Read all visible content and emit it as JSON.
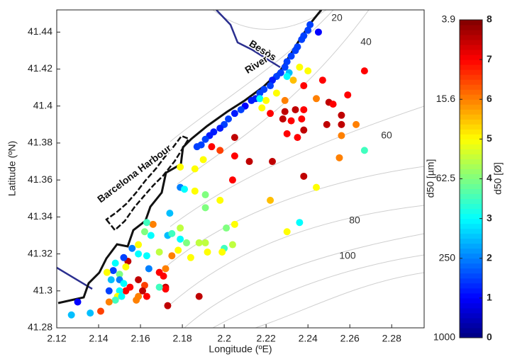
{
  "chart_data": {
    "type": "scatter",
    "colormap": "jet",
    "xlabel": "Longitude (ºE)",
    "ylabel": "Latitude (ºN)",
    "xlim": [
      2.12,
      2.2955
    ],
    "ylim": [
      41.28,
      41.452
    ],
    "xticks": [
      2.12,
      2.14,
      2.16,
      2.18,
      2.2,
      2.22,
      2.24,
      2.26,
      2.28
    ],
    "yticks": [
      41.28,
      41.3,
      41.32,
      41.34,
      41.36,
      41.38,
      41.4,
      41.42,
      41.44
    ],
    "x": [
      2.245,
      2.241,
      2.24,
      2.238,
      2.237,
      2.235,
      2.234,
      2.232,
      2.23,
      2.229,
      2.227,
      2.225,
      2.223,
      2.222,
      2.219,
      2.217,
      2.215,
      2.213,
      2.21,
      2.208,
      2.205,
      2.202,
      2.2,
      2.198,
      2.195,
      2.193,
      2.191,
      2.189,
      2.187,
      2.231,
      2.23,
      2.236,
      2.24,
      2.233,
      2.238,
      2.225,
      2.217,
      2.22,
      2.218,
      2.229,
      2.229,
      2.234,
      2.238,
      2.244,
      2.247,
      2.25,
      2.252,
      2.259,
      2.267,
      2.222,
      2.228,
      2.232,
      2.237,
      2.238,
      2.23,
      2.235,
      2.249,
      2.256,
      2.256,
      2.256,
      2.263,
      2.267,
      2.255,
      2.205,
      2.198,
      2.205,
      2.212,
      2.223,
      2.194,
      2.19,
      2.179,
      2.186,
      2.179,
      2.181,
      2.186,
      2.191,
      2.191,
      2.198,
      2.204,
      2.238,
      2.244,
      2.222,
      2.236,
      2.23,
      2.205,
      2.201,
      2.204,
      2.2,
      2.199,
      2.192,
      2.191,
      2.188,
      2.182,
      2.184,
      2.178,
      2.179,
      2.173,
      2.175,
      2.179,
      2.174,
      2.166,
      2.163,
      2.162,
      2.165,
      2.169,
      2.175,
      2.172,
      2.169,
      2.171,
      2.172,
      2.172,
      2.169,
      2.164,
      2.163,
      2.159,
      2.156,
      2.159,
      2.154,
      2.152,
      2.148,
      2.153,
      2.147,
      2.144,
      2.15,
      2.146,
      2.15,
      2.152,
      2.155,
      2.159,
      2.162,
      2.161,
      2.163,
      2.159,
      2.158,
      2.153,
      2.15,
      2.149,
      2.145,
      2.148,
      2.151,
      2.145,
      2.141,
      2.136,
      2.127,
      2.13,
      2.188,
      2.173
    ],
    "y": [
      41.44,
      41.444,
      41.441,
      41.438,
      41.436,
      41.432,
      41.43,
      41.427,
      41.424,
      41.421,
      41.418,
      41.416,
      41.414,
      41.411,
      41.409,
      41.407,
      41.404,
      41.403,
      41.4,
      41.398,
      41.396,
      41.393,
      41.39,
      41.388,
      41.386,
      41.384,
      41.382,
      41.379,
      41.378,
      41.418,
      41.416,
      41.421,
      41.419,
      41.414,
      41.411,
      41.407,
      41.404,
      41.403,
      41.399,
      41.403,
      41.397,
      41.398,
      41.398,
      41.404,
      41.414,
      41.402,
      41.401,
      41.406,
      41.419,
      41.396,
      41.393,
      41.392,
      41.393,
      41.387,
      41.385,
      41.383,
      41.39,
      41.395,
      41.39,
      41.384,
      41.39,
      41.376,
      41.372,
      41.383,
      41.376,
      41.373,
      41.37,
      41.37,
      41.378,
      41.371,
      41.367,
      41.366,
      41.356,
      41.355,
      41.354,
      41.352,
      41.345,
      41.349,
      41.36,
      41.362,
      41.356,
      41.349,
      41.337,
      41.332,
      41.336,
      41.334,
      41.325,
      41.323,
      41.321,
      41.321,
      41.326,
      41.326,
      41.326,
      41.318,
      41.322,
      41.328,
      41.33,
      41.331,
      41.334,
      41.342,
      41.336,
      41.337,
      41.332,
      41.33,
      41.321,
      41.319,
      41.312,
      41.31,
      41.308,
      41.302,
      41.301,
      41.302,
      41.312,
      41.319,
      41.325,
      41.323,
      41.32,
      41.316,
      41.318,
      41.315,
      41.313,
      41.311,
      41.31,
      41.309,
      41.306,
      41.306,
      41.304,
      41.302,
      41.306,
      41.303,
      41.3,
      41.297,
      41.297,
      41.295,
      41.3,
      41.3,
      41.297,
      41.3,
      41.295,
      41.297,
      41.294,
      41.289,
      41.288,
      41.287,
      41.294,
      41.297,
      41.292
    ],
    "c": [
      1,
      1.5,
      1.5,
      1.5,
      1.5,
      1.5,
      1.5,
      1.5,
      1.5,
      1.5,
      1.5,
      1.5,
      1.2,
      1.5,
      1.5,
      1.5,
      1.2,
      1.2,
      1,
      1.5,
      1.2,
      1.5,
      1.5,
      1.2,
      1.2,
      1.2,
      1.5,
      1.5,
      1.5,
      2.5,
      3,
      5,
      5,
      5.5,
      7,
      5,
      3,
      5,
      5,
      6,
      7.5,
      7.5,
      7,
      6,
      7,
      7.5,
      7,
      7,
      7,
      7,
      7.5,
      7,
      7,
      7.5,
      7,
      7,
      7.5,
      7.5,
      7.5,
      6,
      6,
      3.5,
      6,
      7.5,
      6.5,
      7,
      7.5,
      7.5,
      7,
      5,
      5,
      5,
      2,
      3,
      5,
      4,
      4,
      5,
      7,
      7.5,
      5,
      5.5,
      3,
      5,
      5,
      4,
      4.5,
      3.5,
      5,
      5,
      4.5,
      4.5,
      4,
      5,
      5,
      3,
      2.5,
      3.5,
      4.5,
      2.5,
      6,
      3.5,
      4,
      3,
      4.5,
      6,
      6,
      7,
      7,
      7.5,
      7,
      3.5,
      2,
      3,
      5,
      2,
      3,
      7.5,
      1.5,
      3,
      5,
      1.5,
      5,
      4,
      2.5,
      2,
      3,
      7,
      7.5,
      6.5,
      7.5,
      7,
      6,
      6,
      7,
      3,
      5,
      1.5,
      3.5,
      3,
      6,
      6.5,
      2.5,
      2.5,
      1,
      7.5,
      7.5
    ],
    "colorbar": {
      "lim": [
        0,
        8
      ],
      "ticks": [
        0,
        1,
        2,
        3,
        4,
        5,
        6,
        7,
        8
      ],
      "label": "d50 [Ø]",
      "ticks2": [
        {
          "value": 8,
          "label": "3.9"
        },
        {
          "value": 6,
          "label": "15.6"
        },
        {
          "value": 4,
          "label": "62.5"
        },
        {
          "value": 2,
          "label": "250"
        },
        {
          "value": 0,
          "label": "1000"
        }
      ],
      "label2": "d50 [µm]"
    },
    "annotations": [
      "20",
      "40",
      "60",
      "80",
      "100",
      "Besòs",
      "River",
      "Barcelona Harbour"
    ]
  }
}
